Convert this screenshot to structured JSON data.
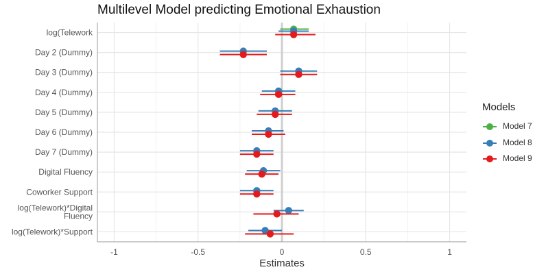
{
  "chart_data": {
    "type": "forest",
    "title": "Multilevel Model predicting Emotional Exhaustion",
    "xlabel": "Estimates",
    "ylabel": "",
    "xlim": [
      -1.1,
      1.1
    ],
    "xticks": [
      -1,
      -0.5,
      0,
      0.5,
      1
    ],
    "xtick_labels": [
      "-1",
      "-0.5",
      "0",
      "0.5",
      "1"
    ],
    "grid": true,
    "legend_title": "Models",
    "legend_position": "right",
    "categories": [
      "log(Telework",
      "Day 2 (Dummy)",
      "Day 3 (Dummy)",
      "Day 4 (Dummy)",
      "Day 5 (Dummy)",
      "Day 6 (Dummy)",
      "Day 7 (Dummy)",
      "Digital Fluency",
      "Coworker Support",
      "log(Telework)*Digital\nFluency",
      "log(Telework)*Support"
    ],
    "series": [
      {
        "name": "Model 7",
        "color": "#4DAF4A",
        "estimates": [
          0.07,
          null,
          null,
          null,
          null,
          null,
          null,
          null,
          null,
          null,
          null
        ],
        "lower": [
          -0.01,
          null,
          null,
          null,
          null,
          null,
          null,
          null,
          null,
          null,
          null
        ],
        "upper": [
          0.16,
          null,
          null,
          null,
          null,
          null,
          null,
          null,
          null,
          null,
          null
        ]
      },
      {
        "name": "Model 8",
        "color": "#377EB8",
        "estimates": [
          0.07,
          -0.23,
          0.1,
          -0.02,
          -0.04,
          -0.08,
          -0.15,
          -0.11,
          -0.15,
          0.04,
          -0.1
        ],
        "lower": [
          -0.02,
          -0.37,
          -0.01,
          -0.12,
          -0.14,
          -0.18,
          -0.25,
          -0.21,
          -0.25,
          -0.05,
          -0.2
        ],
        "upper": [
          0.16,
          -0.09,
          0.21,
          0.08,
          0.06,
          0.01,
          -0.05,
          -0.01,
          -0.05,
          0.13,
          0.0
        ]
      },
      {
        "name": "Model 9",
        "color": "#E41A1C",
        "estimates": [
          0.07,
          -0.23,
          0.1,
          -0.02,
          -0.04,
          -0.08,
          -0.15,
          -0.12,
          -0.15,
          -0.03,
          -0.07
        ],
        "lower": [
          -0.04,
          -0.37,
          -0.01,
          -0.13,
          -0.15,
          -0.18,
          -0.25,
          -0.22,
          -0.25,
          -0.17,
          -0.22
        ],
        "upper": [
          0.2,
          -0.09,
          0.21,
          0.08,
          0.06,
          0.02,
          -0.05,
          -0.02,
          -0.05,
          0.1,
          0.07
        ]
      }
    ]
  }
}
